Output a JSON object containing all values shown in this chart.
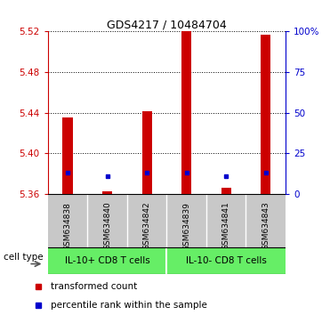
{
  "title": "GDS4217 / 10484704",
  "samples": [
    "GSM634838",
    "GSM634840",
    "GSM634842",
    "GSM634839",
    "GSM634841",
    "GSM634843"
  ],
  "red_values": [
    5.435,
    5.362,
    5.441,
    5.52,
    5.366,
    5.517
  ],
  "blue_percentiles_pct": [
    13,
    11,
    13,
    13,
    11,
    13
  ],
  "ymin": 5.36,
  "ymax": 5.52,
  "yticks": [
    5.36,
    5.4,
    5.44,
    5.48,
    5.52
  ],
  "right_yticks": [
    0,
    25,
    50,
    75,
    100
  ],
  "right_yticklabels": [
    "0",
    "25",
    "50",
    "75",
    "100%"
  ],
  "group1_label": "IL-10+ CD8 T cells",
  "group2_label": "IL-10- CD8 T cells",
  "group1_indices": [
    0,
    1,
    2
  ],
  "group2_indices": [
    3,
    4,
    5
  ],
  "cell_type_label": "cell type",
  "legend_red": "transformed count",
  "legend_blue": "percentile rank within the sample",
  "bar_color": "#cc0000",
  "dot_color": "#0000cc",
  "sample_bg": "#c8c8c8",
  "group_color": "#66ee66",
  "bar_width": 0.25,
  "title_fontsize": 9,
  "tick_fontsize": 7.5,
  "legend_fontsize": 7.5
}
